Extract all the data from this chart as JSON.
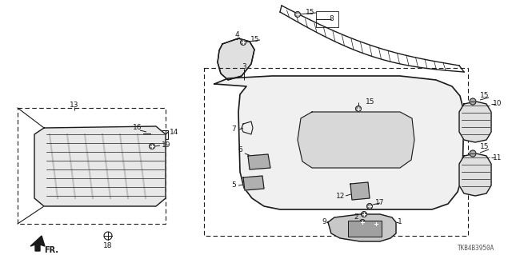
{
  "diagram_code": "TKB4B3950A",
  "bg": "#ffffff",
  "lc": "#1a1a1a",
  "font_size": 6.5,
  "fig_w": 6.4,
  "fig_h": 3.19,
  "dpi": 100
}
